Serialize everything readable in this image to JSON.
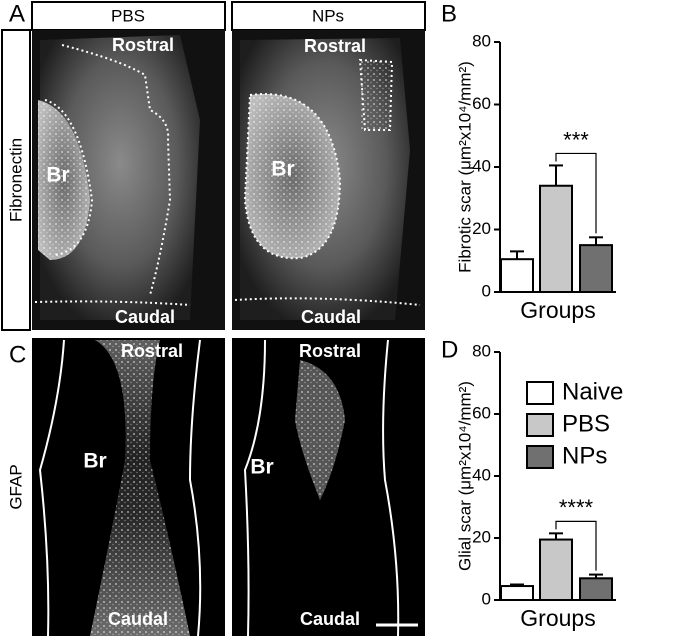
{
  "figure": {
    "panel_labels": [
      "A",
      "B",
      "C",
      "D"
    ],
    "columns": [
      "PBS",
      "NPs"
    ],
    "rows": [
      "Fibronectin",
      "GFAP"
    ],
    "images": [
      {
        "rostral": "Rostral",
        "caudal": "Caudal",
        "region": "Br"
      },
      {
        "rostral": "Rostral",
        "caudal": "Caudal",
        "region": "Br"
      },
      {
        "rostral": "Rostral",
        "caudal": "Caudal",
        "region": "Br"
      },
      {
        "rostral": "Rostral",
        "caudal": "Caudal",
        "region": "Br"
      }
    ]
  },
  "chart_data": [
    {
      "type": "bar",
      "ylabel": "Fibrotic scar (μm²x10⁴/mm²)",
      "xlabel": "Groups",
      "ylim": [
        0,
        80
      ],
      "yticks": [
        0,
        20,
        40,
        60,
        80
      ],
      "legend": false,
      "annotation": "***",
      "series": [
        {
          "color": "#ffffff",
          "values": [
            10.5
          ],
          "errors": [
            2.5
          ]
        },
        {
          "color": "#c8c8c8",
          "values": [
            34
          ],
          "errors": [
            6.5
          ]
        },
        {
          "color": "#707070",
          "values": [
            15
          ],
          "errors": [
            2.5
          ]
        }
      ]
    },
    {
      "type": "bar",
      "ylabel": "Glial scar (μm²x10⁴/mm²)",
      "xlabel": "Groups",
      "ylim": [
        0,
        80
      ],
      "yticks": [
        0,
        20,
        40,
        60,
        80
      ],
      "legend": true,
      "annotation": "****",
      "series": [
        {
          "name": "Naive",
          "color": "#ffffff",
          "values": [
            4.5
          ],
          "errors": [
            0.5
          ]
        },
        {
          "name": "PBS",
          "color": "#c8c8c8",
          "values": [
            19.5
          ],
          "errors": [
            2
          ]
        },
        {
          "name": "NPs",
          "color": "#707070",
          "values": [
            7
          ],
          "errors": [
            1.2
          ]
        }
      ]
    }
  ]
}
